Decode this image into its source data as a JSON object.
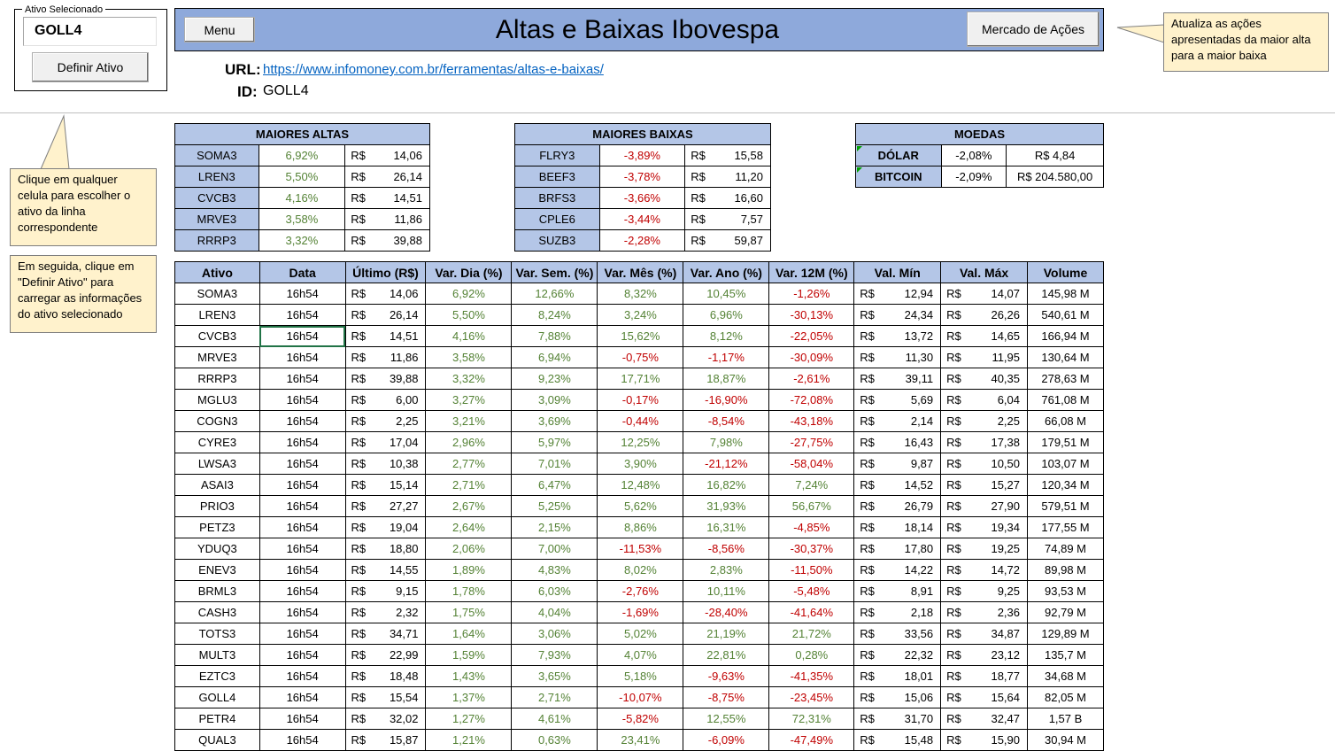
{
  "selector": {
    "label": "Ativo Selecionado",
    "value": "GOLL4",
    "define_button": "Definir Ativo"
  },
  "header": {
    "menu_button": "Menu",
    "title": "Altas e Baixas Ibovespa",
    "market_button": "Mercado de Ações"
  },
  "info": {
    "url_label": "URL:",
    "url": "https://www.infomoney.com.br/ferramentas/altas-e-baixas/",
    "id_label": "ID:",
    "id_value": "GOLL4"
  },
  "callouts": {
    "update": "Atualiza as ações apresentadas da maior alta para a maior baixa",
    "click_cell": "Clique em qualquer celula para escolher o ativo da linha correspondente",
    "then_click": "Em seguida, clique em \"Definir Ativo\" para carregar as informações do ativo selecionado"
  },
  "currency_symbol": "R$",
  "maiores_altas": {
    "title": "MAIORES ALTAS",
    "rows": [
      {
        "ticker": "SOMA3",
        "var": "6,92%",
        "price": "14,06"
      },
      {
        "ticker": "LREN3",
        "var": "5,50%",
        "price": "26,14"
      },
      {
        "ticker": "CVCB3",
        "var": "4,16%",
        "price": "14,51"
      },
      {
        "ticker": "MRVE3",
        "var": "3,58%",
        "price": "11,86"
      },
      {
        "ticker": "RRRP3",
        "var": "3,32%",
        "price": "39,88"
      }
    ]
  },
  "maiores_baixas": {
    "title": "MAIORES BAIXAS",
    "rows": [
      {
        "ticker": "FLRY3",
        "var": "-3,89%",
        "price": "15,58"
      },
      {
        "ticker": "BEEF3",
        "var": "-3,78%",
        "price": "11,20"
      },
      {
        "ticker": "BRFS3",
        "var": "-3,66%",
        "price": "16,60"
      },
      {
        "ticker": "CPLE6",
        "var": "-3,44%",
        "price": "7,57"
      },
      {
        "ticker": "SUZB3",
        "var": "-2,28%",
        "price": "59,87"
      }
    ]
  },
  "moedas": {
    "title": "MOEDAS",
    "rows": [
      {
        "name": "DÓLAR",
        "var": "-2,08%",
        "price": "R$ 4,84"
      },
      {
        "name": "BITCOIN",
        "var": "-2,09%",
        "price": "R$ 204.580,00"
      }
    ]
  },
  "main_table": {
    "columns": [
      "Ativo",
      "Data",
      "Último (R$)",
      "Var. Dia (%)",
      "Var. Sem. (%)",
      "Var. Mês (%)",
      "Var. Ano (%)",
      "Var. 12M (%)",
      "Val. Mín",
      "Val. Máx",
      "Volume"
    ],
    "rows": [
      [
        "SOMA3",
        "16h54",
        "14,06",
        "6,92%",
        "12,66%",
        "8,32%",
        "10,45%",
        "-1,26%",
        "12,94",
        "14,07",
        "145,98 M"
      ],
      [
        "LREN3",
        "16h54",
        "26,14",
        "5,50%",
        "8,24%",
        "3,24%",
        "6,96%",
        "-30,13%",
        "24,34",
        "26,26",
        "540,61 M"
      ],
      [
        "CVCB3",
        "16h54",
        "14,51",
        "4,16%",
        "7,88%",
        "15,62%",
        "8,12%",
        "-22,05%",
        "13,72",
        "14,65",
        "166,94 M"
      ],
      [
        "MRVE3",
        "16h54",
        "11,86",
        "3,58%",
        "6,94%",
        "-0,75%",
        "-1,17%",
        "-30,09%",
        "11,30",
        "11,95",
        "130,64 M"
      ],
      [
        "RRRP3",
        "16h54",
        "39,88",
        "3,32%",
        "9,23%",
        "17,71%",
        "18,87%",
        "-2,61%",
        "39,11",
        "40,35",
        "278,63 M"
      ],
      [
        "MGLU3",
        "16h54",
        "6,00",
        "3,27%",
        "3,09%",
        "-0,17%",
        "-16,90%",
        "-72,08%",
        "5,69",
        "6,04",
        "761,08 M"
      ],
      [
        "COGN3",
        "16h54",
        "2,25",
        "3,21%",
        "3,69%",
        "-0,44%",
        "-8,54%",
        "-43,18%",
        "2,14",
        "2,25",
        "66,08 M"
      ],
      [
        "CYRE3",
        "16h54",
        "17,04",
        "2,96%",
        "5,97%",
        "12,25%",
        "7,98%",
        "-27,75%",
        "16,43",
        "17,38",
        "179,51 M"
      ],
      [
        "LWSA3",
        "16h54",
        "10,38",
        "2,77%",
        "7,01%",
        "3,90%",
        "-21,12%",
        "-58,04%",
        "9,87",
        "10,50",
        "103,07 M"
      ],
      [
        "ASAI3",
        "16h54",
        "15,14",
        "2,71%",
        "6,47%",
        "12,48%",
        "16,82%",
        "7,24%",
        "14,52",
        "15,27",
        "120,34 M"
      ],
      [
        "PRIO3",
        "16h54",
        "27,27",
        "2,67%",
        "5,25%",
        "5,62%",
        "31,93%",
        "56,67%",
        "26,79",
        "27,90",
        "579,51 M"
      ],
      [
        "PETZ3",
        "16h54",
        "19,04",
        "2,64%",
        "2,15%",
        "8,86%",
        "16,31%",
        "-4,85%",
        "18,14",
        "19,34",
        "177,55 M"
      ],
      [
        "YDUQ3",
        "16h54",
        "18,80",
        "2,06%",
        "7,00%",
        "-11,53%",
        "-8,56%",
        "-30,37%",
        "17,80",
        "19,25",
        "74,89 M"
      ],
      [
        "ENEV3",
        "16h54",
        "14,55",
        "1,89%",
        "4,83%",
        "8,02%",
        "2,83%",
        "-11,50%",
        "14,22",
        "14,72",
        "89,98 M"
      ],
      [
        "BRML3",
        "16h54",
        "9,15",
        "1,78%",
        "6,03%",
        "-2,76%",
        "10,11%",
        "-5,48%",
        "8,91",
        "9,25",
        "93,53 M"
      ],
      [
        "CASH3",
        "16h54",
        "2,32",
        "1,75%",
        "4,04%",
        "-1,69%",
        "-28,40%",
        "-41,64%",
        "2,18",
        "2,36",
        "92,79 M"
      ],
      [
        "TOTS3",
        "16h54",
        "34,71",
        "1,64%",
        "3,06%",
        "5,02%",
        "21,19%",
        "21,72%",
        "33,56",
        "34,87",
        "129,89 M"
      ],
      [
        "MULT3",
        "16h54",
        "22,99",
        "1,59%",
        "7,93%",
        "4,07%",
        "22,81%",
        "0,28%",
        "22,32",
        "23,12",
        "135,7 M"
      ],
      [
        "EZTC3",
        "16h54",
        "18,48",
        "1,43%",
        "3,65%",
        "5,18%",
        "-9,63%",
        "-41,35%",
        "18,01",
        "18,77",
        "34,68 M"
      ],
      [
        "GOLL4",
        "16h54",
        "15,54",
        "1,37%",
        "2,71%",
        "-10,07%",
        "-8,75%",
        "-23,45%",
        "15,06",
        "15,64",
        "82,05 M"
      ],
      [
        "PETR4",
        "16h54",
        "32,02",
        "1,27%",
        "4,61%",
        "-5,82%",
        "12,55%",
        "72,31%",
        "31,70",
        "32,47",
        "1,57 B"
      ],
      [
        "QUAL3",
        "16h54",
        "15,87",
        "1,21%",
        "0,63%",
        "23,41%",
        "-6,09%",
        "-47,49%",
        "15,48",
        "15,90",
        "30,94 M"
      ]
    ]
  }
}
